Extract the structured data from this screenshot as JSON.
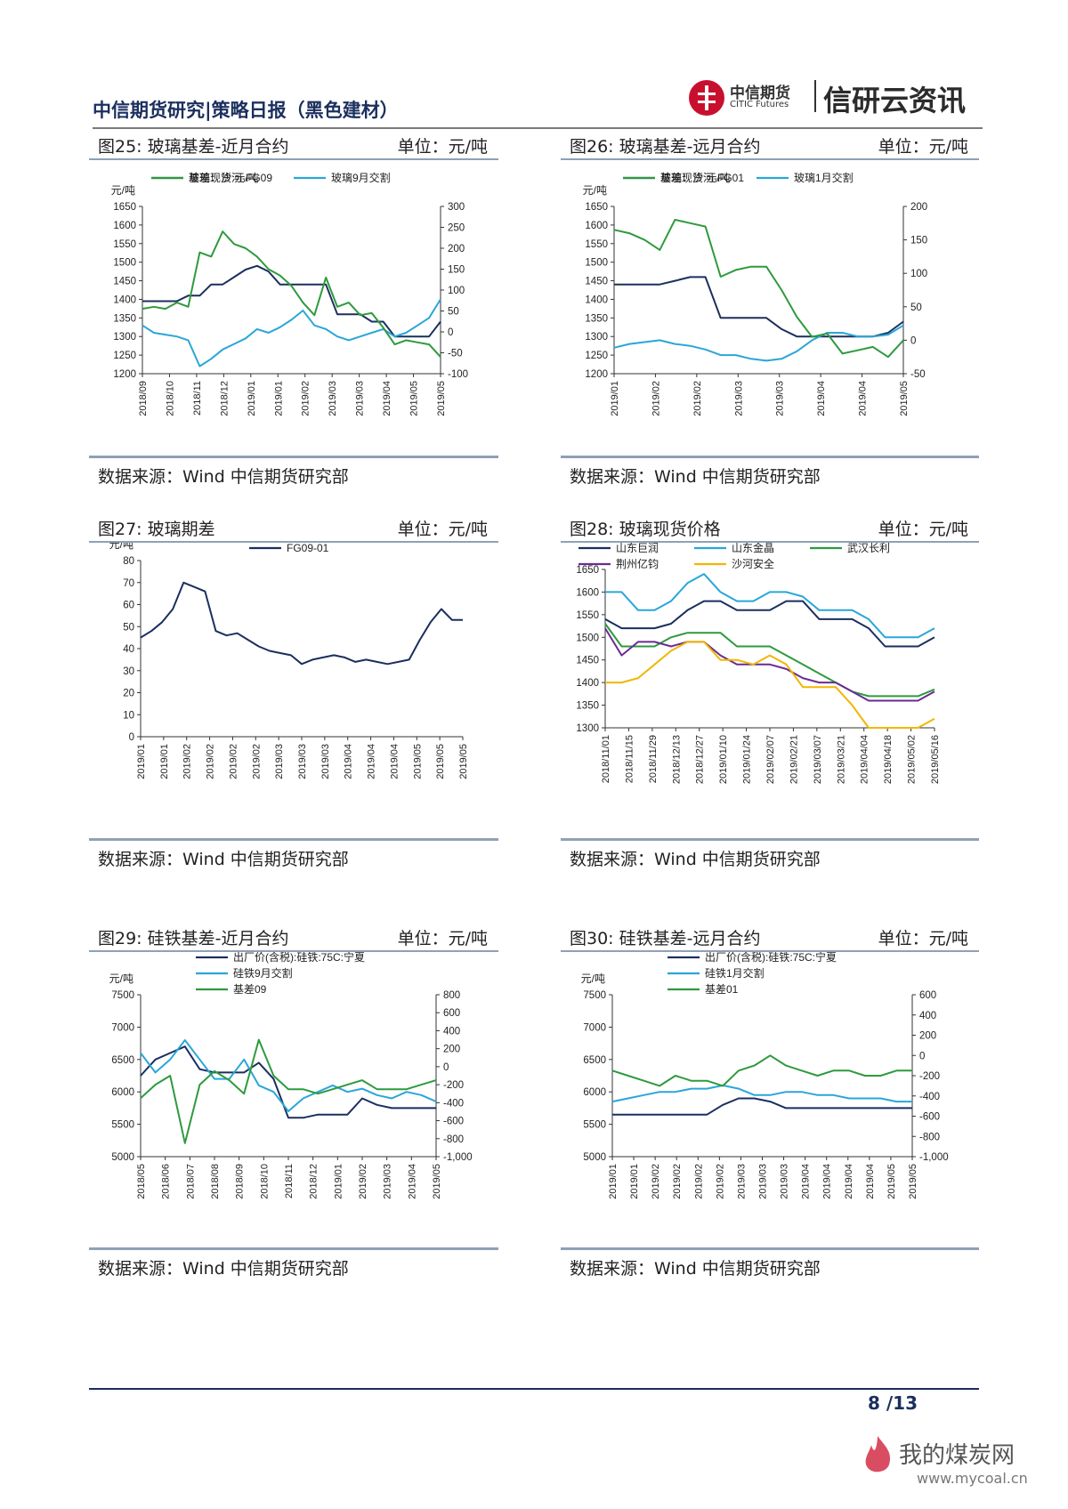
{
  "header": {
    "title": "中信期货研究|策略日报（黑色建材）",
    "logo_cn": "中信期货",
    "logo_en": "CITIC Futures",
    "brand": "信研云资讯"
  },
  "panels": [
    {
      "title": "图25:  玻璃基差-近月合约",
      "unit": "单位：元/吨",
      "source": "数据来源：Wind  中信期货研究部"
    },
    {
      "title": "图26:  玻璃基差-远月合约",
      "unit": "单位：元/吨",
      "source": "数据来源：Wind  中信期货研究部"
    },
    {
      "title": "图27:  玻璃期差",
      "unit": "单位：元/吨",
      "source": "数据来源：Wind  中信期货研究部"
    },
    {
      "title": "图28:  玻璃现货价格",
      "unit": "单位：元/吨",
      "source": "数据来源：Wind  中信期货研究部"
    },
    {
      "title": "图29:  硅铁基差-近月合约",
      "unit": "单位：元/吨",
      "source": "数据来源：Wind  中信期货研究部"
    },
    {
      "title": "图30:  硅铁基差-远月合约",
      "unit": "单位：元/吨",
      "source": "数据来源：Wind  中信期货研究部"
    }
  ],
  "footer": {
    "page": "8  /13",
    "watermark": "我的煤炭网",
    "watermark_url": "www.mycoal.cn"
  },
  "colors": {
    "navy": "#1b2f5e",
    "cyan": "#2aa6d8",
    "green": "#2e9a3e",
    "purple": "#6a2c91",
    "yellow": "#f2b600"
  },
  "chart_data": [
    {
      "type": "line",
      "title": "图25: 玻璃基差-近月合约",
      "ylabel": "元/吨",
      "ylim": [
        1200,
        1650
      ],
      "y2lim": [
        -100,
        300
      ],
      "yticks": [
        "1650",
        "1600",
        "1550",
        "1500",
        "1450",
        "1400",
        "1350",
        "1300",
        "1250",
        "1200"
      ],
      "y2ticks": [
        "300",
        "250",
        "200",
        "150",
        "100",
        "50",
        "0",
        "-50",
        "-100"
      ],
      "xticks": [
        "2018/09",
        "2018/10",
        "2018/11",
        "2018/12",
        "2019/01",
        "2019/01",
        "2019/02",
        "2019/03",
        "2019/03",
        "2019/04",
        "2019/05",
        "2019/05"
      ],
      "legend": [
        "玻璃现货 元/吨",
        "玻璃9月交割",
        "基差：沙河-FG09"
      ],
      "series": [
        {
          "name": "玻璃现货 元/吨",
          "axis": "left",
          "color": "navy",
          "values": [
            1395,
            1395,
            1395,
            1395,
            1410,
            1410,
            1440,
            1440,
            1460,
            1480,
            1490,
            1475,
            1440,
            1440,
            1440,
            1440,
            1440,
            1360,
            1360,
            1360,
            1340,
            1340,
            1300,
            1300,
            1300,
            1300,
            1340
          ]
        },
        {
          "name": "玻璃9月交割",
          "axis": "left",
          "color": "cyan",
          "values": [
            1330,
            1310,
            1305,
            1300,
            1290,
            1220,
            1240,
            1265,
            1280,
            1295,
            1320,
            1310,
            1325,
            1345,
            1370,
            1330,
            1320,
            1300,
            1290,
            1300,
            1310,
            1320,
            1300,
            1310,
            1330,
            1350,
            1400
          ]
        },
        {
          "name": "基差：沙河-FG09",
          "axis": "right",
          "color": "green",
          "values": [
            55,
            60,
            55,
            70,
            60,
            190,
            180,
            240,
            210,
            200,
            180,
            150,
            135,
            110,
            70,
            40,
            130,
            60,
            70,
            40,
            45,
            10,
            -30,
            -20,
            -25,
            -30,
            -60
          ]
        }
      ]
    },
    {
      "type": "line",
      "title": "图26: 玻璃基差-远月合约",
      "ylabel": "元/吨",
      "ylim": [
        1200,
        1650
      ],
      "y2lim": [
        -50,
        200
      ],
      "yticks": [
        "1650",
        "1600",
        "1550",
        "1500",
        "1450",
        "1400",
        "1350",
        "1300",
        "1250",
        "1200"
      ],
      "y2ticks": [
        "200",
        "150",
        "100",
        "50",
        "0",
        "-50"
      ],
      "xticks": [
        "2019/01",
        "2019/02",
        "2019/02",
        "2019/03",
        "2019/03",
        "2019/04",
        "2019/04",
        "2019/05"
      ],
      "legend": [
        "玻璃现货 元/吨",
        "玻璃1月交割",
        "基差：沙河-FG01"
      ],
      "series": [
        {
          "name": "玻璃现货 元/吨",
          "axis": "left",
          "color": "navy",
          "values": [
            1440,
            1440,
            1440,
            1440,
            1450,
            1460,
            1460,
            1350,
            1350,
            1350,
            1350,
            1320,
            1300,
            1300,
            1300,
            1300,
            1300,
            1300,
            1310,
            1340
          ]
        },
        {
          "name": "玻璃1月交割",
          "axis": "left",
          "color": "cyan",
          "values": [
            1270,
            1280,
            1285,
            1290,
            1280,
            1275,
            1265,
            1250,
            1250,
            1240,
            1235,
            1240,
            1260,
            1290,
            1310,
            1310,
            1300,
            1300,
            1305,
            1330
          ]
        },
        {
          "name": "基差：沙河-FG01",
          "axis": "right",
          "color": "green",
          "values": [
            165,
            160,
            150,
            135,
            180,
            175,
            170,
            95,
            105,
            110,
            110,
            75,
            35,
            5,
            10,
            -20,
            -15,
            -10,
            -25,
            0
          ]
        }
      ]
    },
    {
      "type": "line",
      "title": "图27: 玻璃期差",
      "ylabel": "元/吨",
      "ylim": [
        0,
        80
      ],
      "yticks": [
        "80",
        "70",
        "60",
        "50",
        "40",
        "30",
        "20",
        "10",
        "0"
      ],
      "xticks": [
        "2019/01",
        "2019/01",
        "2019/02",
        "2019/02",
        "2019/02",
        "2019/02",
        "2019/03",
        "2019/03",
        "2019/03",
        "2019/04",
        "2019/04",
        "2019/04",
        "2019/05",
        "2019/05",
        "2019/05"
      ],
      "legend": [
        "FG09-01"
      ],
      "series": [
        {
          "name": "FG09-01",
          "axis": "left",
          "color": "navy",
          "values": [
            45,
            48,
            52,
            58,
            70,
            68,
            66,
            48,
            46,
            47,
            44,
            41,
            39,
            38,
            37,
            33,
            35,
            36,
            37,
            36,
            34,
            35,
            34,
            33,
            34,
            35,
            44,
            52,
            58,
            53,
            53
          ]
        }
      ]
    },
    {
      "type": "line",
      "title": "图28: 玻璃现货价格",
      "ylim": [
        1300,
        1650
      ],
      "yticks": [
        "1650",
        "1600",
        "1550",
        "1500",
        "1450",
        "1400",
        "1350",
        "1300"
      ],
      "xticks": [
        "2018/11/01",
        "2018/11/15",
        "2018/11/29",
        "2018/12/13",
        "2018/12/27",
        "2019/01/10",
        "2019/01/24",
        "2019/02/07",
        "2019/02/21",
        "2019/03/07",
        "2019/03/21",
        "2019/04/04",
        "2019/04/18",
        "2019/05/02",
        "2019/05/16"
      ],
      "legend": [
        "山东巨润",
        "山东金晶",
        "武汉长利",
        "荆州亿钧",
        "沙河安全"
      ],
      "series": [
        {
          "name": "山东巨润",
          "color": "navy",
          "values": [
            1540,
            1520,
            1520,
            1520,
            1530,
            1560,
            1580,
            1580,
            1560,
            1560,
            1560,
            1580,
            1580,
            1540,
            1540,
            1540,
            1520,
            1480,
            1480,
            1480,
            1500
          ]
        },
        {
          "name": "山东金晶",
          "color": "cyan",
          "values": [
            1600,
            1600,
            1560,
            1560,
            1580,
            1620,
            1640,
            1600,
            1580,
            1580,
            1600,
            1600,
            1590,
            1560,
            1560,
            1560,
            1540,
            1500,
            1500,
            1500,
            1520
          ]
        },
        {
          "name": "武汉长利",
          "color": "green",
          "values": [
            1530,
            1480,
            1480,
            1480,
            1500,
            1510,
            1510,
            1510,
            1480,
            1480,
            1480,
            1460,
            1440,
            1420,
            1400,
            1380,
            1370,
            1370,
            1370,
            1370,
            1385
          ]
        },
        {
          "name": "荆州亿钧",
          "color": "purple",
          "values": [
            1520,
            1460,
            1490,
            1490,
            1480,
            1490,
            1490,
            1460,
            1440,
            1440,
            1440,
            1430,
            1410,
            1400,
            1400,
            1380,
            1360,
            1360,
            1360,
            1360,
            1380
          ]
        },
        {
          "name": "沙河安全",
          "color": "yellow",
          "values": [
            1400,
            1400,
            1410,
            1440,
            1470,
            1490,
            1490,
            1450,
            1450,
            1440,
            1460,
            1440,
            1390,
            1390,
            1390,
            1350,
            1300,
            1300,
            1300,
            1300,
            1320
          ]
        }
      ]
    },
    {
      "type": "line",
      "title": "图29: 硅铁基差-近月合约",
      "ylabel": "元/吨",
      "ylim": [
        5000,
        7500
      ],
      "y2lim": [
        -1000,
        800
      ],
      "yticks": [
        "7500",
        "7000",
        "6500",
        "6000",
        "5500",
        "5000"
      ],
      "y2ticks": [
        "800",
        "600",
        "400",
        "200",
        "0",
        "-200",
        "-400",
        "-600",
        "-800",
        "-1,000"
      ],
      "xticks": [
        "2018/05",
        "2018/06",
        "2018/07",
        "2018/08",
        "2018/09",
        "2018/10",
        "2018/11",
        "2018/12",
        "2019/01",
        "2019/02",
        "2019/03",
        "2019/04",
        "2019/05"
      ],
      "legend": [
        "出厂价(含税):硅铁:75C:宁夏",
        "硅铁9月交割",
        "基差09"
      ],
      "series": [
        {
          "name": "出厂价(含税):硅铁:75C:宁夏",
          "axis": "left",
          "color": "navy",
          "values": [
            6250,
            6500,
            6600,
            6700,
            6350,
            6300,
            6300,
            6300,
            6450,
            6200,
            5600,
            5600,
            5650,
            5650,
            5650,
            5900,
            5800,
            5750,
            5750,
            5750,
            5750
          ]
        },
        {
          "name": "硅铁9月交割",
          "axis": "left",
          "color": "cyan",
          "values": [
            6600,
            6300,
            6500,
            6800,
            6500,
            6200,
            6200,
            6500,
            6100,
            6000,
            5700,
            5900,
            6000,
            6100,
            6000,
            6050,
            5950,
            5900,
            6000,
            5950,
            5850
          ]
        },
        {
          "name": "基差09",
          "axis": "right",
          "color": "green",
          "values": [
            -350,
            -200,
            -100,
            -850,
            -200,
            -50,
            -150,
            -300,
            300,
            -100,
            -250,
            -250,
            -300,
            -250,
            -200,
            -150,
            -250,
            -250,
            -250,
            -200,
            -150
          ]
        }
      ]
    },
    {
      "type": "line",
      "title": "图30: 硅铁基差-远月合约",
      "ylabel": "元/吨",
      "ylim": [
        5000,
        7500
      ],
      "y2lim": [
        -1000,
        600
      ],
      "yticks": [
        "7500",
        "7000",
        "6500",
        "6000",
        "5500",
        "5000"
      ],
      "y2ticks": [
        "600",
        "400",
        "200",
        "0",
        "-200",
        "-400",
        "-600",
        "-800",
        "-1,000"
      ],
      "xticks": [
        "2019/01",
        "2019/01",
        "2019/02",
        "2019/02",
        "2019/02",
        "2019/02",
        "2019/03",
        "2019/03",
        "2019/03",
        "2019/04",
        "2019/04",
        "2019/04",
        "2019/04",
        "2019/05",
        "2019/05"
      ],
      "legend": [
        "出厂价(含税):硅铁:75C:宁夏",
        "硅铁1月交割",
        "基差01"
      ],
      "series": [
        {
          "name": "出厂价(含税):硅铁:75C:宁夏",
          "axis": "left",
          "color": "navy",
          "values": [
            5650,
            5650,
            5650,
            5650,
            5650,
            5650,
            5650,
            5800,
            5900,
            5900,
            5850,
            5750,
            5750,
            5750,
            5750,
            5750,
            5750,
            5750,
            5750,
            5750
          ]
        },
        {
          "name": "硅铁1月交割",
          "axis": "left",
          "color": "cyan",
          "values": [
            5850,
            5900,
            5950,
            6000,
            6000,
            6050,
            6050,
            6100,
            6050,
            5950,
            5950,
            6000,
            6000,
            5950,
            5950,
            5900,
            5900,
            5900,
            5850,
            5850
          ]
        },
        {
          "name": "基差01",
          "axis": "right",
          "color": "green",
          "values": [
            -150,
            -200,
            -250,
            -300,
            -200,
            -250,
            -250,
            -300,
            -150,
            -100,
            0,
            -100,
            -150,
            -200,
            -150,
            -150,
            -200,
            -200,
            -150,
            -150
          ]
        }
      ]
    }
  ]
}
